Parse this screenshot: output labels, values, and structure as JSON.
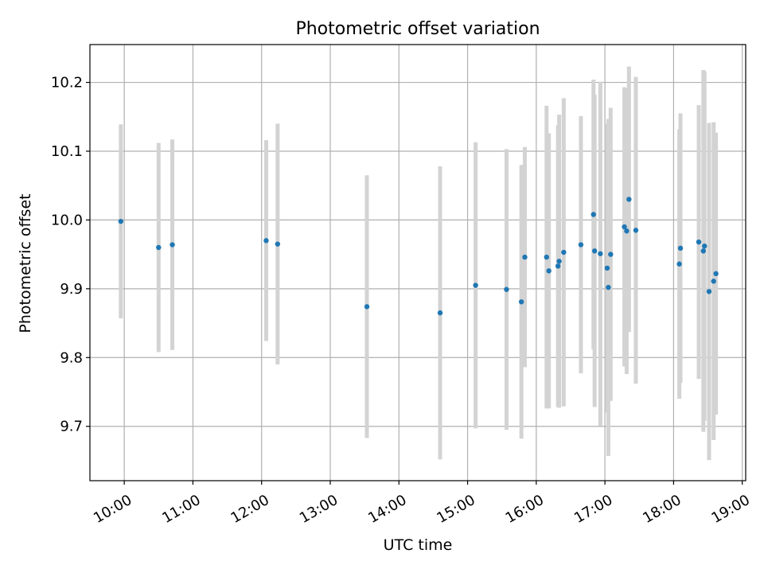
{
  "chart_data": {
    "type": "scatter",
    "title": "Photometric offset variation",
    "xlabel": "UTC time",
    "ylabel": "Photometric offset",
    "xlim": [
      "09:30",
      "19:03"
    ],
    "ylim": [
      9.621,
      10.255
    ],
    "grid": true,
    "x_ticks": [
      "10:00",
      "11:00",
      "12:00",
      "13:00",
      "14:00",
      "15:00",
      "16:00",
      "17:00",
      "18:00",
      "19:00"
    ],
    "y_ticks": [
      9.7,
      9.8,
      9.9,
      10.0,
      10.1,
      10.2
    ],
    "colors": {
      "point": "#1f77b4",
      "errorbar": "#d3d3d3",
      "grid": "#b0b0b0"
    },
    "series": [
      {
        "points": [
          {
            "x": "09:57",
            "y": 9.998,
            "err": 0.141
          },
          {
            "x": "10:30",
            "y": 9.96,
            "err": 0.152
          },
          {
            "x": "10:42",
            "y": 9.964,
            "err": 0.153
          },
          {
            "x": "12:04",
            "y": 9.97,
            "err": 0.146
          },
          {
            "x": "12:14",
            "y": 9.965,
            "err": 0.175
          },
          {
            "x": "13:32",
            "y": 9.874,
            "err": 0.191
          },
          {
            "x": "14:36",
            "y": 9.865,
            "err": 0.213
          },
          {
            "x": "15:07",
            "y": 9.905,
            "err": 0.208
          },
          {
            "x": "15:34",
            "y": 9.899,
            "err": 0.204
          },
          {
            "x": "15:47",
            "y": 9.881,
            "err": 0.199
          },
          {
            "x": "15:50",
            "y": 9.946,
            "err": 0.16
          },
          {
            "x": "16:09",
            "y": 9.946,
            "err": 0.22
          },
          {
            "x": "16:11",
            "y": 9.926,
            "err": 0.2
          },
          {
            "x": "16:19",
            "y": 9.933,
            "err": 0.205
          },
          {
            "x": "16:20",
            "y": 9.94,
            "err": 0.213
          },
          {
            "x": "16:24",
            "y": 9.953,
            "err": 0.224
          },
          {
            "x": "16:39",
            "y": 9.964,
            "err": 0.187
          },
          {
            "x": "16:50",
            "y": 10.008,
            "err": 0.196
          },
          {
            "x": "16:51",
            "y": 9.955,
            "err": 0.227
          },
          {
            "x": "16:56",
            "y": 9.951,
            "err": 0.25
          },
          {
            "x": "17:02",
            "y": 9.93,
            "err": 0.21
          },
          {
            "x": "17:03",
            "y": 9.902,
            "err": 0.245
          },
          {
            "x": "17:05",
            "y": 9.95,
            "err": 0.213
          },
          {
            "x": "17:17",
            "y": 9.99,
            "err": 0.203
          },
          {
            "x": "17:19",
            "y": 9.984,
            "err": 0.208
          },
          {
            "x": "17:21",
            "y": 10.03,
            "err": 0.193
          },
          {
            "x": "17:27",
            "y": 9.985,
            "err": 0.223
          },
          {
            "x": "18:05",
            "y": 9.936,
            "err": 0.196
          },
          {
            "x": "18:06",
            "y": 9.959,
            "err": 0.196
          },
          {
            "x": "18:22",
            "y": 9.968,
            "err": 0.199
          },
          {
            "x": "18:26",
            "y": 9.955,
            "err": 0.263
          },
          {
            "x": "18:27",
            "y": 9.962,
            "err": 0.254
          },
          {
            "x": "18:31",
            "y": 9.896,
            "err": 0.245
          },
          {
            "x": "18:35",
            "y": 9.911,
            "err": 0.231
          },
          {
            "x": "18:37",
            "y": 9.922,
            "err": 0.205
          }
        ]
      }
    ]
  }
}
